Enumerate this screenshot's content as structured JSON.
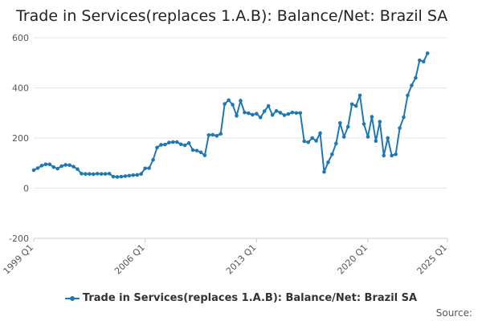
{
  "chart_data": {
    "type": "line",
    "title": "Trade in Services(replaces 1.A.B): Balance/Net: Brazil SA",
    "ylim": [
      -200,
      600
    ],
    "y_ticks": [
      "600",
      "400",
      "200",
      "0",
      "-200"
    ],
    "x_ticks": [
      "1999 Q1",
      "2006 Q1",
      "2013 Q1",
      "2020 Q1",
      "2025 Q1"
    ],
    "grid": true,
    "legend_position": "bottom",
    "series": [
      {
        "name": "Trade in Services(replaces 1.A.B): Balance/Net: Brazil SA",
        "color": "#1f78b4",
        "start": "1999 Q1",
        "frequency": "quarterly",
        "values": [
          72,
          80,
          90,
          95,
          95,
          84,
          78,
          88,
          93,
          92,
          86,
          76,
          58,
          57,
          57,
          56,
          58,
          57,
          57,
          58,
          46,
          45,
          46,
          48,
          50,
          52,
          53,
          57,
          79,
          80,
          113,
          162,
          173,
          174,
          182,
          184,
          184,
          175,
          171,
          180,
          152,
          150,
          143,
          131,
          212,
          213,
          209,
          217,
          336,
          351,
          333,
          289,
          349,
          302,
          299,
          293,
          297,
          282,
          307,
          328,
          292,
          308,
          301,
          291,
          296,
          302,
          300,
          300,
          187,
          183,
          200,
          189,
          219,
          65,
          103,
          135,
          178,
          260,
          205,
          245,
          335,
          328,
          370,
          256,
          205,
          285,
          188,
          265,
          130,
          200,
          130,
          135,
          240,
          283,
          370,
          410,
          440,
          510,
          505,
          538
        ]
      }
    ]
  },
  "source_label": "Source:"
}
